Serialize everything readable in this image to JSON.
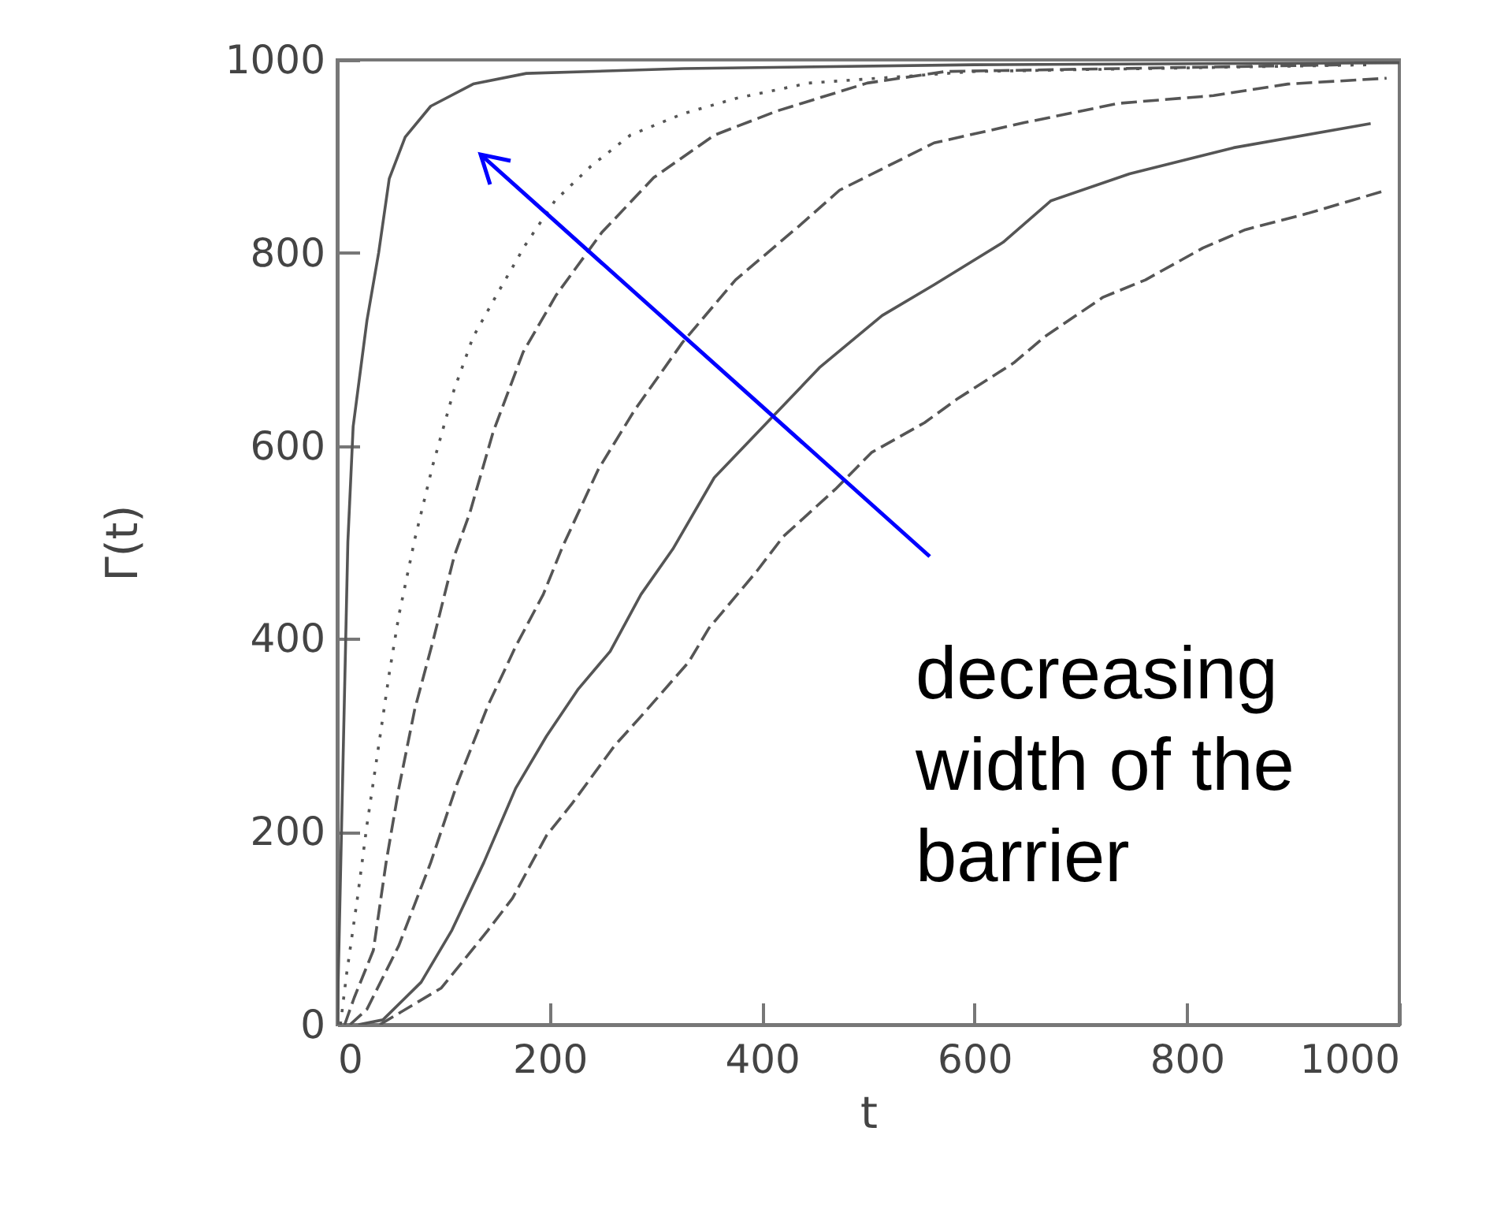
{
  "chart_data": {
    "type": "line",
    "xlabel": "t",
    "ylabel": "Γ(t)",
    "xlim": [
      0,
      1000
    ],
    "ylim": [
      0,
      1000
    ],
    "xticks": [
      0,
      200,
      400,
      600,
      800,
      1000
    ],
    "yticks": [
      0,
      200,
      400,
      600,
      800,
      1000
    ],
    "grid": false,
    "annotations": [
      "decreasing width of the barrier"
    ],
    "series": [
      {
        "color": "#555555",
        "line_style": "solid",
        "x": [
          0,
          5,
          10,
          15,
          28,
          39,
          49,
          64,
          88,
          128,
          178,
          326,
          600,
          1000
        ],
        "values": [
          0,
          250,
          500,
          620,
          730,
          800,
          877,
          920,
          952,
          975,
          986,
          991,
          995,
          997
        ]
      },
      {
        "color": "#555555",
        "line_style": "dotted",
        "x": [
          3,
          9,
          19,
          28,
          39,
          49,
          58,
          73,
          90,
          110,
          128,
          153,
          177,
          205,
          239,
          276,
          325,
          375,
          444,
          600,
          975
        ],
        "values": [
          0,
          54,
          131,
          207,
          289,
          364,
          424,
          503,
          580,
          658,
          713,
          762,
          808,
          854,
          890,
          922,
          944,
          960,
          976,
          988,
          995
        ]
      },
      {
        "color": "#555555",
        "line_style": "dashed",
        "x": [
          7,
          16,
          34,
          46,
          58,
          73,
          90,
          110,
          125,
          147,
          175,
          206,
          249,
          298,
          355,
          414,
          499,
          573,
          950
        ],
        "values": [
          0,
          28,
          77,
          168,
          245,
          327,
          397,
          485,
          531,
          615,
          697,
          756,
          821,
          878,
          922,
          947,
          976,
          988,
          995
        ]
      },
      {
        "color": "#555555",
        "line_style": "dashed",
        "x": [
          12,
          28,
          58,
          88,
          113,
          142,
          168,
          194,
          212,
          246,
          280,
          325,
          375,
          435,
          473,
          513,
          562,
          647,
          736,
          825,
          895,
          988
        ],
        "values": [
          0,
          16,
          82,
          168,
          250,
          331,
          392,
          446,
          495,
          576,
          637,
          707,
          772,
          828,
          865,
          887,
          914,
          935,
          955,
          963,
          975,
          981
        ]
      },
      {
        "color": "#555555",
        "line_style": "solid",
        "x": [
          20,
          43,
          79,
          108,
          138,
          168,
          197,
          227,
          257,
          286,
          316,
          355,
          409,
          454,
          513,
          562,
          627,
          672,
          746,
          844,
          973
        ],
        "values": [
          0,
          5,
          44,
          98,
          168,
          245,
          299,
          348,
          387,
          446,
          493,
          567,
          629,
          681,
          735,
          767,
          811,
          854,
          882,
          909,
          934
        ]
      },
      {
        "color": "#555555",
        "line_style": "dashed",
        "x": [
          40,
          98,
          142,
          165,
          197,
          221,
          261,
          288,
          331,
          350,
          395,
          420,
          469,
          503,
          553,
          583,
          637,
          666,
          721,
          761,
          815,
          855,
          914,
          988
        ],
        "values": [
          0,
          38,
          98,
          131,
          196,
          229,
          289,
          322,
          376,
          411,
          470,
          506,
          555,
          593,
          624,
          648,
          686,
          713,
          754,
          772,
          805,
          824,
          841,
          865
        ]
      }
    ]
  }
}
